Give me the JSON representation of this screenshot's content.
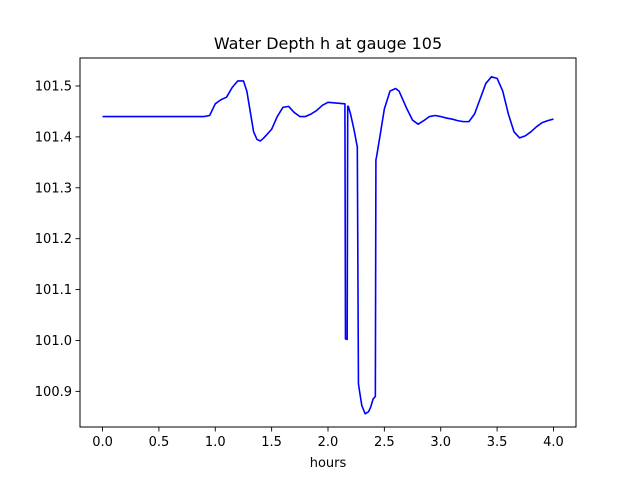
{
  "chart_data": {
    "type": "line",
    "title": "Water Depth h at gauge 105",
    "xlabel": "hours",
    "ylabel": "",
    "xlim": [
      -0.2,
      4.2
    ],
    "ylim": [
      100.83,
      101.555
    ],
    "x_ticks": [
      0.0,
      0.5,
      1.0,
      1.5,
      2.0,
      2.5,
      3.0,
      3.5,
      4.0
    ],
    "x_tick_labels": [
      "0.0",
      "0.5",
      "1.0",
      "1.5",
      "2.0",
      "2.5",
      "3.0",
      "3.5",
      "4.0"
    ],
    "y_ticks": [
      100.9,
      101.0,
      101.1,
      101.2,
      101.3,
      101.4,
      101.5
    ],
    "y_tick_labels": [
      "100.9",
      "101.0",
      "101.1",
      "101.2",
      "101.3",
      "101.4",
      "101.5"
    ],
    "grid": false,
    "legend": "none",
    "series": [
      {
        "color": "#0000ff",
        "x": [
          0.0,
          0.5,
          0.9,
          0.95,
          1.0,
          1.05,
          1.1,
          1.15,
          1.2,
          1.25,
          1.28,
          1.31,
          1.34,
          1.37,
          1.4,
          1.43,
          1.46,
          1.5,
          1.55,
          1.6,
          1.65,
          1.7,
          1.75,
          1.8,
          1.85,
          1.9,
          1.95,
          2.0,
          2.05,
          2.1,
          2.15,
          2.155,
          2.16,
          2.17,
          2.175,
          2.18,
          2.2,
          2.23,
          2.26,
          2.27,
          2.28,
          2.3,
          2.33,
          2.36,
          2.38,
          2.4,
          2.42,
          2.425,
          2.43,
          2.46,
          2.5,
          2.55,
          2.6,
          2.63,
          2.66,
          2.7,
          2.75,
          2.8,
          2.85,
          2.9,
          2.95,
          3.0,
          3.05,
          3.1,
          3.15,
          3.2,
          3.25,
          3.3,
          3.35,
          3.4,
          3.45,
          3.5,
          3.55,
          3.6,
          3.65,
          3.7,
          3.75,
          3.8,
          3.85,
          3.9,
          3.95,
          4.0
        ],
        "y": [
          101.44,
          101.44,
          101.44,
          101.442,
          101.465,
          101.473,
          101.478,
          101.497,
          101.51,
          101.51,
          101.49,
          101.45,
          101.41,
          101.395,
          101.392,
          101.398,
          101.405,
          101.415,
          101.44,
          101.458,
          101.46,
          101.448,
          101.44,
          101.44,
          101.445,
          101.452,
          101.462,
          101.468,
          101.467,
          101.466,
          101.465,
          101.003,
          101.003,
          101.002,
          101.46,
          101.46,
          101.445,
          101.415,
          101.38,
          100.915,
          100.9,
          100.872,
          100.856,
          100.86,
          100.87,
          100.885,
          100.89,
          101.355,
          101.36,
          101.4,
          101.455,
          101.49,
          101.495,
          101.49,
          101.475,
          101.455,
          101.433,
          101.425,
          101.432,
          101.44,
          101.442,
          101.44,
          101.437,
          101.435,
          101.432,
          101.43,
          101.43,
          101.445,
          101.475,
          101.505,
          101.518,
          101.515,
          101.49,
          101.445,
          101.41,
          101.398,
          101.402,
          101.41,
          101.42,
          101.428,
          101.432,
          101.435
        ]
      }
    ]
  }
}
